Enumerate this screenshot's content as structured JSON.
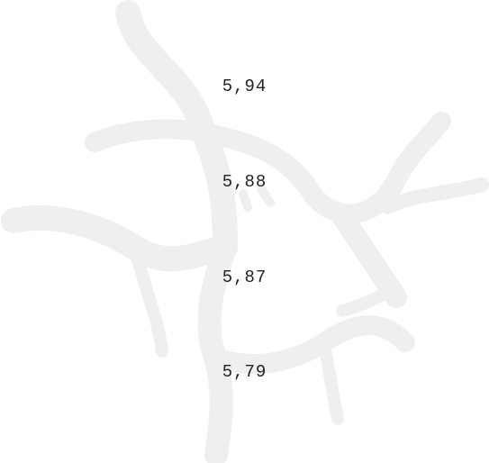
{
  "values": [
    "5,94",
    "5,88",
    "5,87",
    "5,79"
  ]
}
